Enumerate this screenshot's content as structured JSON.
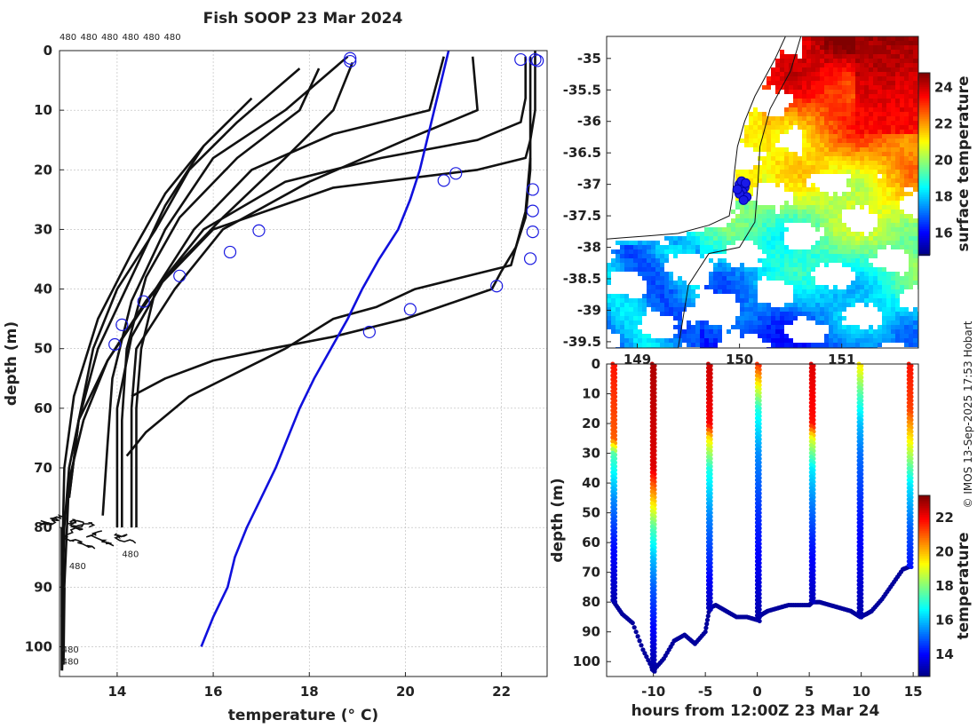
{
  "title": "Fish SOOP 23 Mar 2024",
  "credit": "© IMOS 13-Sep-2025 17:53 Hobart",
  "chart_data": [
    {
      "type": "line",
      "name": "temperature-profiles",
      "xlabel": "temperature (° C)",
      "ylabel": "depth (m)",
      "xlim": [
        12.8,
        22.95
      ],
      "ylim": [
        105,
        0
      ],
      "xticks": [
        14,
        16,
        18,
        20,
        22
      ],
      "yticks": [
        0,
        10,
        20,
        30,
        40,
        50,
        60,
        70,
        80,
        90,
        100
      ],
      "top_labels": [
        "480",
        "480",
        "480",
        "480",
        "480",
        "480"
      ],
      "profile_labels": [
        {
          "text": "480",
          "x": 13.0,
          "y": 87
        },
        {
          "text": "480",
          "x": 14.1,
          "y": 85
        },
        {
          "text": "480",
          "x": 12.85,
          "y": 101
        },
        {
          "text": "480",
          "x": 12.85,
          "y": 103
        }
      ],
      "reference_series": {
        "name": "climatology",
        "color": "#1010dd",
        "x": [
          15.75,
          16.0,
          16.3,
          16.45,
          16.7,
          17.0,
          17.3,
          17.55,
          17.8,
          18.1,
          18.45,
          18.8,
          19.1,
          19.45,
          19.85,
          20.1,
          20.3,
          20.45,
          20.6,
          20.75,
          20.9
        ],
        "y": [
          100,
          95,
          90,
          85,
          80,
          75,
          70,
          65,
          60,
          55,
          50,
          45,
          40,
          35,
          30,
          25,
          20,
          15,
          10,
          5,
          0
        ]
      },
      "series": [
        {
          "name": "profile-1",
          "x": [
            22.7,
            22.7,
            22.6,
            22.5,
            21.5,
            18.5,
            16.0,
            14.8,
            13.8,
            13.2,
            13.0,
            12.9,
            12.85
          ],
          "y": [
            0,
            10,
            15,
            18,
            20,
            23,
            30,
            40,
            52,
            62,
            70,
            80,
            95
          ]
        },
        {
          "name": "profile-2",
          "x": [
            22.5,
            22.5,
            22.4,
            21.5,
            19.5,
            17.5,
            15.8,
            14.6,
            13.8,
            13.3,
            13.0,
            12.9
          ],
          "y": [
            1,
            8,
            12,
            15,
            18,
            22,
            30,
            42,
            52,
            62,
            72,
            90
          ]
        },
        {
          "name": "profile-3",
          "x": [
            22.6,
            22.6,
            22.5,
            22.3,
            22.0,
            21.8,
            20.0,
            18.5,
            17.2,
            16.0,
            15.0,
            14.3
          ],
          "y": [
            1,
            20,
            28,
            33,
            37,
            40,
            45,
            48,
            50,
            52,
            55,
            58
          ]
        },
        {
          "name": "profile-4",
          "x": [
            22.6,
            22.5,
            22.2,
            20.2,
            19.4,
            18.5,
            17.5,
            16.5,
            15.5,
            14.6,
            14.2
          ],
          "y": [
            18,
            27,
            36,
            40,
            43,
            45,
            50,
            54,
            58,
            64,
            68
          ]
        },
        {
          "name": "profile-5",
          "x": [
            21.4,
            21.5,
            20.0,
            18.0,
            16.2,
            15.2,
            14.4,
            14.3,
            14.3
          ],
          "y": [
            1,
            10,
            15,
            22,
            30,
            40,
            50,
            60,
            80
          ]
        },
        {
          "name": "profile-6",
          "x": [
            20.8,
            20.5,
            18.5,
            16.8,
            15.6,
            14.8,
            14.5,
            14.4,
            14.4
          ],
          "y": [
            1,
            10,
            14,
            20,
            30,
            40,
            50,
            60,
            80
          ]
        },
        {
          "name": "profile-7",
          "x": [
            18.9,
            18.5,
            17.5,
            16.2,
            15.0,
            14.3,
            14.0,
            14.0
          ],
          "y": [
            2,
            10,
            18,
            28,
            38,
            48,
            60,
            80
          ]
        },
        {
          "name": "profile-8",
          "x": [
            18.2,
            17.8,
            16.5,
            15.3,
            14.6,
            14.2,
            14.1,
            14.1
          ],
          "y": [
            3,
            10,
            18,
            28,
            38,
            50,
            62,
            80
          ]
        },
        {
          "name": "profile-9",
          "x": [
            18.8,
            17.5,
            16.0,
            15.0,
            14.3,
            13.9,
            13.8,
            13.7
          ],
          "y": [
            1,
            10,
            18,
            30,
            42,
            55,
            66,
            78
          ]
        },
        {
          "name": "profile-10",
          "x": [
            17.8,
            16.5,
            15.5,
            14.8,
            14.0,
            13.5,
            13.2,
            13.0
          ],
          "y": [
            3,
            12,
            20,
            30,
            40,
            50,
            62,
            75
          ]
        },
        {
          "name": "profile-11",
          "x": [
            16.8,
            15.8,
            15.0,
            14.3,
            13.6,
            13.2,
            13.0
          ],
          "y": [
            8,
            16,
            26,
            38,
            50,
            62,
            75
          ]
        },
        {
          "name": "profile-12",
          "x": [
            15.8,
            15.0,
            14.3,
            13.6,
            13.1,
            12.9,
            12.85
          ],
          "y": [
            16,
            24,
            34,
            45,
            58,
            70,
            88
          ]
        }
      ],
      "circles": [
        {
          "x": 18.85,
          "y": 1.3
        },
        {
          "x": 18.85,
          "y": 1.8
        },
        {
          "x": 22.4,
          "y": 1.5
        },
        {
          "x": 22.7,
          "y": 1.5
        },
        {
          "x": 22.75,
          "y": 1.7
        },
        {
          "x": 20.8,
          "y": 21.8
        },
        {
          "x": 21.05,
          "y": 20.6
        },
        {
          "x": 22.65,
          "y": 23.3
        },
        {
          "x": 22.65,
          "y": 26.9
        },
        {
          "x": 22.65,
          "y": 30.4
        },
        {
          "x": 22.6,
          "y": 34.9
        },
        {
          "x": 21.9,
          "y": 39.5
        },
        {
          "x": 20.1,
          "y": 43.4
        },
        {
          "x": 19.25,
          "y": 47.2
        },
        {
          "x": 16.95,
          "y": 30.2
        },
        {
          "x": 16.35,
          "y": 33.8
        },
        {
          "x": 15.3,
          "y": 37.8
        },
        {
          "x": 14.55,
          "y": 42.1
        },
        {
          "x": 14.1,
          "y": 46.0
        },
        {
          "x": 13.95,
          "y": 49.3
        }
      ]
    },
    {
      "type": "heatmap",
      "name": "surface-temperature-map",
      "colorbar_label": "surface temperature",
      "xlim": [
        148.7,
        151.75
      ],
      "ylim": [
        -39.6,
        -34.65
      ],
      "yticks": [
        -35,
        -35.5,
        -36,
        -36.5,
        -37,
        -37.5,
        -38,
        -38.5,
        -39,
        -39.5
      ],
      "xticks": [
        149,
        150,
        151
      ],
      "xtick_labels": [
        "149",
        "150",
        "151"
      ],
      "colorbar_range": [
        14.8,
        24.8
      ],
      "colorbar_ticks": [
        16,
        18,
        20,
        22,
        24
      ],
      "track_points": [
        {
          "lon": 150.0,
          "lat": -37.0
        },
        {
          "lon": 150.02,
          "lat": -36.95
        },
        {
          "lon": 150.05,
          "lat": -37.05
        },
        {
          "lon": 150.03,
          "lat": -37.12
        },
        {
          "lon": 150.07,
          "lat": -37.2
        },
        {
          "lon": 150.0,
          "lat": -37.15
        },
        {
          "lon": 150.06,
          "lat": -36.98
        },
        {
          "lon": 150.04,
          "lat": -37.25
        },
        {
          "lon": 149.98,
          "lat": -37.08
        }
      ]
    },
    {
      "type": "scatter",
      "name": "depth-time-section",
      "xlabel": "hours from 12:00Z 23 Mar 24",
      "ylabel": "depth (m)",
      "xlim": [
        -14.5,
        15.5
      ],
      "ylim": [
        105,
        0
      ],
      "xticks": [
        -10,
        -5,
        0,
        5,
        10,
        15
      ],
      "yticks": [
        0,
        10,
        20,
        30,
        40,
        50,
        60,
        70,
        80,
        90,
        100
      ],
      "colorbar_label": "temperature",
      "colorbar_range": [
        12.7,
        23.3
      ],
      "colorbar_ticks": [
        14,
        16,
        18,
        20,
        22
      ],
      "casts": [
        {
          "t": -13.8,
          "bottom": 80,
          "temps": [
            [
              0,
              21.8
            ],
            [
              25,
              21.0
            ],
            [
              30,
              17.5
            ],
            [
              45,
              15.5
            ],
            [
              60,
              14.2
            ],
            [
              80,
              13.2
            ]
          ]
        },
        {
          "t": -10.0,
          "bottom": 103,
          "temps": [
            [
              0,
              22.8
            ],
            [
              35,
              22.3
            ],
            [
              45,
              20.0
            ],
            [
              55,
              17.5
            ],
            [
              65,
              16.0
            ],
            [
              75,
              15.0
            ],
            [
              103,
              13.0
            ]
          ]
        },
        {
          "t": -4.6,
          "bottom": 82,
          "temps": [
            [
              0,
              22.5
            ],
            [
              20,
              22.0
            ],
            [
              25,
              19.5
            ],
            [
              35,
              17.0
            ],
            [
              50,
              15.5
            ],
            [
              65,
              14.5
            ],
            [
              82,
              13.3
            ]
          ]
        },
        {
          "t": 0.1,
          "bottom": 86,
          "temps": [
            [
              0,
              21.5
            ],
            [
              8,
              19.0
            ],
            [
              15,
              17.0
            ],
            [
              30,
              15.5
            ],
            [
              50,
              14.5
            ],
            [
              70,
              13.8
            ],
            [
              86,
              13.1
            ]
          ]
        },
        {
          "t": 5.3,
          "bottom": 80,
          "temps": [
            [
              0,
              22.3
            ],
            [
              20,
              21.8
            ],
            [
              25,
              19.0
            ],
            [
              35,
              16.5
            ],
            [
              45,
              15.5
            ],
            [
              60,
              14.3
            ],
            [
              80,
              13.3
            ]
          ]
        },
        {
          "t": 9.9,
          "bottom": 85,
          "temps": [
            [
              0,
              19.5
            ],
            [
              10,
              17.5
            ],
            [
              20,
              16.0
            ],
            [
              30,
              15.2
            ],
            [
              50,
              14.3
            ],
            [
              70,
              13.7
            ],
            [
              85,
              13.1
            ]
          ]
        },
        {
          "t": 14.7,
          "bottom": 68,
          "temps": [
            [
              0,
              21.8
            ],
            [
              15,
              21.3
            ],
            [
              25,
              19.5
            ],
            [
              40,
              16.5
            ],
            [
              55,
              15.0
            ],
            [
              68,
              14.2
            ]
          ]
        }
      ],
      "bottom_track": {
        "t": [
          -13.8,
          -13.0,
          -12.0,
          -11.0,
          -10.0,
          -9.0,
          -8.0,
          -7.0,
          -6.0,
          -5.0,
          -4.6,
          -4.0,
          -3.0,
          -2.0,
          -1.0,
          0.0,
          0.1,
          0.5,
          1.0,
          2.0,
          3.0,
          4.0,
          5.0,
          5.3,
          6.0,
          7.0,
          8.0,
          9.0,
          9.9,
          10.5,
          11.0,
          12.0,
          13.0,
          14.0,
          14.7
        ],
        "depth": [
          80,
          84,
          87,
          96,
          103,
          99,
          93,
          91,
          94,
          90,
          82,
          81,
          83,
          85,
          85,
          86,
          85,
          84,
          83,
          82,
          81,
          81,
          81,
          80,
          80,
          81,
          82,
          83,
          85,
          84,
          83,
          79,
          74,
          69,
          68
        ]
      }
    }
  ]
}
